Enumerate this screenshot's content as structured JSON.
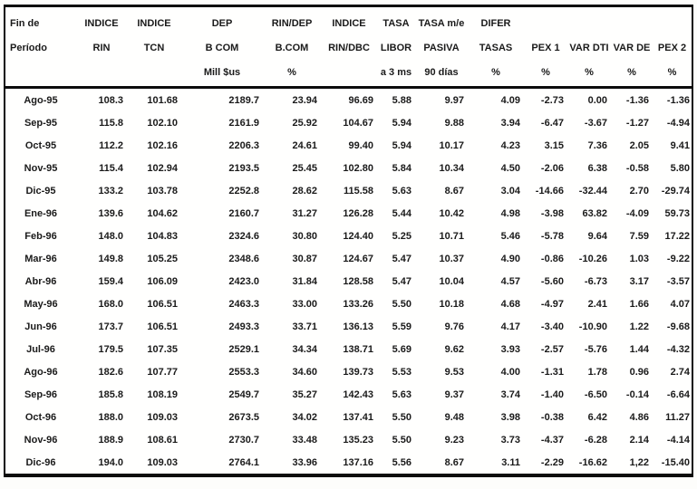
{
  "colors": {
    "ink": "#1a1a1a",
    "paper": "#ffffff",
    "border": "#0c0c0c"
  },
  "table": {
    "columns": [
      {
        "id": "periodo",
        "line1": "Fin de",
        "line2": "Período",
        "line3": ""
      },
      {
        "id": "indice-rin",
        "line1": "INDICE",
        "line2": "RIN",
        "line3": ""
      },
      {
        "id": "indice-tcn",
        "line1": "INDICE",
        "line2": "TCN",
        "line3": ""
      },
      {
        "id": "dep-b-com",
        "line1": "DEP",
        "line2": "B COM",
        "line3": "Mill $us"
      },
      {
        "id": "rin-dep-b-com",
        "line1": "RIN/DEP",
        "line2": "B.COM",
        "line3": "%"
      },
      {
        "id": "indice-rin-dbc",
        "line1": "INDICE",
        "line2": "RIN/DBC",
        "line3": ""
      },
      {
        "id": "tasa-libor",
        "line1": "TASA",
        "line2": "LIBOR",
        "line3": "a 3 ms"
      },
      {
        "id": "tasa-me-pasiva",
        "line1": "TASA m/e",
        "line2": "PASIVA",
        "line3": "90 días"
      },
      {
        "id": "difer-tasas",
        "line1": "DIFER",
        "line2": "TASAS",
        "line3": "%"
      },
      {
        "id": "pex-1",
        "line1": "",
        "line2": "PEX 1",
        "line3": "%"
      },
      {
        "id": "var-dti",
        "line1": "",
        "line2": "VAR DTI",
        "line3": "%"
      },
      {
        "id": "var-de",
        "line1": "",
        "line2": "VAR DE",
        "line3": "%"
      },
      {
        "id": "pex-2",
        "line1": "",
        "line2": "PEX 2",
        "line3": "%"
      }
    ],
    "rows": [
      [
        "Ago-95",
        "108.3",
        "101.68",
        "2189.7",
        "23.94",
        "96.69",
        "5.88",
        "9.97",
        "4.09",
        "-2.73",
        "0.00",
        "-1.36",
        "-1.36"
      ],
      [
        "Sep-95",
        "115.8",
        "102.10",
        "2161.9",
        "25.92",
        "104.67",
        "5.94",
        "9.88",
        "3.94",
        "-6.47",
        "-3.67",
        "-1.27",
        "-4.94"
      ],
      [
        "Oct-95",
        "112.2",
        "102.16",
        "2206.3",
        "24.61",
        "99.40",
        "5.94",
        "10.17",
        "4.23",
        "3.15",
        "7.36",
        "2.05",
        "9.41"
      ],
      [
        "Nov-95",
        "115.4",
        "102.94",
        "2193.5",
        "25.45",
        "102.80",
        "5.84",
        "10.34",
        "4.50",
        "-2.06",
        "6.38",
        "-0.58",
        "5.80"
      ],
      [
        "Dic-95",
        "133.2",
        "103.78",
        "2252.8",
        "28.62",
        "115.58",
        "5.63",
        "8.67",
        "3.04",
        "-14.66",
        "-32.44",
        "2.70",
        "-29.74"
      ],
      [
        "Ene-96",
        "139.6",
        "104.62",
        "2160.7",
        "31.27",
        "126.28",
        "5.44",
        "10.42",
        "4.98",
        "-3.98",
        "63.82",
        "-4.09",
        "59.73"
      ],
      [
        "Feb-96",
        "148.0",
        "104.83",
        "2324.6",
        "30.80",
        "124.40",
        "5.25",
        "10.71",
        "5.46",
        "-5.78",
        "9.64",
        "7.59",
        "17.22"
      ],
      [
        "Mar-96",
        "149.8",
        "105.25",
        "2348.6",
        "30.87",
        "124.67",
        "5.47",
        "10.37",
        "4.90",
        "-0.86",
        "-10.26",
        "1.03",
        "-9.22"
      ],
      [
        "Abr-96",
        "159.4",
        "106.09",
        "2423.0",
        "31.84",
        "128.58",
        "5.47",
        "10.04",
        "4.57",
        "-5.60",
        "-6.73",
        "3.17",
        "-3.57"
      ],
      [
        "May-96",
        "168.0",
        "106.51",
        "2463.3",
        "33.00",
        "133.26",
        "5.50",
        "10.18",
        "4.68",
        "-4.97",
        "2.41",
        "1.66",
        "4.07"
      ],
      [
        "Jun-96",
        "173.7",
        "106.51",
        "2493.3",
        "33.71",
        "136.13",
        "5.59",
        "9.76",
        "4.17",
        "-3.40",
        "-10.90",
        "1.22",
        "-9.68"
      ],
      [
        "Jul-96",
        "179.5",
        "107.35",
        "2529.1",
        "34.34",
        "138.71",
        "5.69",
        "9.62",
        "3.93",
        "-2.57",
        "-5.76",
        "1.44",
        "-4.32"
      ],
      [
        "Ago-96",
        "182.6",
        "107.77",
        "2553.3",
        "34.60",
        "139.73",
        "5.53",
        "9.53",
        "4.00",
        "-1.31",
        "1.78",
        "0.96",
        "2.74"
      ],
      [
        "Sep-96",
        "185.8",
        "108.19",
        "2549.7",
        "35.27",
        "142.43",
        "5.63",
        "9.37",
        "3.74",
        "-1.40",
        "-6.50",
        "-0.14",
        "-6.64"
      ],
      [
        "Oct-96",
        "188.0",
        "109.03",
        "2673.5",
        "34.02",
        "137.41",
        "5.50",
        "9.48",
        "3.98",
        "-0.38",
        "6.42",
        "4.86",
        "11.27"
      ],
      [
        "Nov-96",
        "188.9",
        "108.61",
        "2730.7",
        "33.48",
        "135.23",
        "5.50",
        "9.23",
        "3.73",
        "-4.37",
        "-6.28",
        "2.14",
        "-4.14"
      ],
      [
        "Dic-96",
        "194.0",
        "109.03",
        "2764.1",
        "33.96",
        "137.16",
        "5.56",
        "8.67",
        "3.11",
        "-2.29",
        "-16.62",
        "1,22",
        "-15.40"
      ]
    ]
  }
}
